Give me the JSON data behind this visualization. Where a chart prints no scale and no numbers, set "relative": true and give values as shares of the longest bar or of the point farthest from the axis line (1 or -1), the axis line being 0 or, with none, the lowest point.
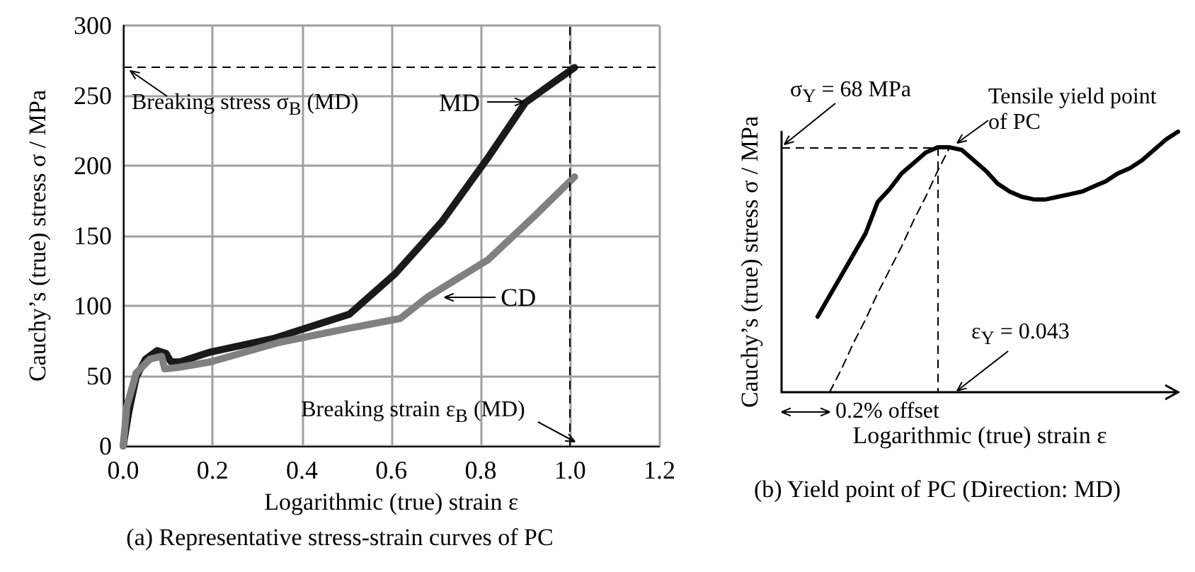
{
  "chart_data": [
    {
      "type": "line",
      "title": "(a) Representative stress-strain curves of PC",
      "xlabel": "Logarithmic (true) strain ε",
      "ylabel": "Cauchy’s (true) stress σ / MPa",
      "xlim": [
        0,
        1.2
      ],
      "xticks": [
        {
          "value": 0,
          "label": "0.0"
        },
        {
          "value": 0.2,
          "label": "0.2"
        },
        {
          "value": 0.4,
          "label": "0.4"
        },
        {
          "value": 0.6,
          "label": "0.6"
        },
        {
          "value": 0.8,
          "label": "0.8"
        },
        {
          "value": 1,
          "label": "1.0"
        },
        {
          "value": 1.2,
          "label": "1.2"
        }
      ],
      "ylim": [
        0,
        300
      ],
      "yticks": [
        0,
        50,
        100,
        150,
        200,
        250,
        300
      ],
      "grid": true,
      "marker": "none",
      "series": [
        {
          "name": "MD",
          "color": "#1a1a1a",
          "x": [
            0,
            0.013,
            0.029,
            0.05,
            0.076,
            0.096,
            0.107,
            0.127,
            0.195,
            0.34,
            0.506,
            0.609,
            0.713,
            0.817,
            0.9,
            1.01
          ],
          "values": [
            0,
            25,
            49,
            62,
            68,
            66,
            60,
            60,
            67,
            77,
            94,
            123,
            160,
            206,
            245,
            270
          ]
        },
        {
          "name": "CD",
          "color": "#808080",
          "x": [
            0,
            0.008,
            0.029,
            0.06,
            0.086,
            0.093,
            0.122,
            0.195,
            0.35,
            0.506,
            0.62,
            0.68,
            0.817,
            0.92,
            1.01
          ],
          "values": [
            0,
            28,
            52,
            62,
            64,
            55,
            56,
            60,
            74,
            84,
            91,
            106,
            133,
            164,
            192
          ]
        }
      ],
      "ref_lines": [
        {
          "axis": "y",
          "value": 270,
          "line_style": "dashed"
        },
        {
          "axis": "x",
          "value": 1.0,
          "line_style": "dashed"
        }
      ],
      "annotations": [
        {
          "text": "Breaking stress σ$_{B}$ (MD)",
          "x": 0,
          "y": 270
        },
        {
          "text": "Breaking strain ε$_{B}$ (MD)",
          "x": 1.0,
          "y": 0
        }
      ]
    },
    {
      "type": "line",
      "relative": true,
      "title": "(b) Yield point of PC (Direction: MD)",
      "xlabel": "Logarithmic (true) strain ε",
      "ylabel": "Cauchy’s (true) stress σ / MPa",
      "marker": "none",
      "categories": [
        null,
        null,
        null,
        null,
        null,
        null,
        null,
        null,
        null,
        null,
        null,
        null,
        null,
        null,
        null,
        null,
        null,
        null,
        null,
        null,
        null,
        null,
        null,
        null,
        null,
        null,
        null,
        null,
        null,
        null,
        null,
        null,
        null,
        null
      ],
      "series": [
        {
          "color": "#000000",
          "values": [
            null,
            null,
            null,
            0.29,
            0.37,
            0.45,
            0.53,
            0.61,
            0.73,
            0.78,
            0.84,
            0.88,
            0.92,
            0.94,
            0.94,
            0.93,
            0.89,
            0.85,
            0.8,
            0.77,
            0.75,
            0.74,
            0.74,
            0.75,
            0.76,
            0.77,
            0.79,
            0.81,
            0.84,
            0.86,
            0.89,
            0.93,
            0.97,
            1.0
          ]
        },
        {
          "color": "#000000",
          "line_style": "dashed",
          "values": [
            null,
            null,
            null,
            null,
            0,
            0.09,
            0.19,
            0.28,
            0.38,
            0.47,
            0.56,
            0.66,
            0.75,
            0.85,
            0.94,
            null,
            null,
            null,
            null,
            null,
            null,
            null,
            null,
            null,
            null,
            null,
            null,
            null,
            null,
            null,
            null,
            null,
            null,
            null
          ]
        }
      ],
      "ref_lines": [
        {
          "axis": "y",
          "value": 0.94,
          "line_style": "dashed"
        }
      ],
      "annotations": [
        "σ$_{Y}$ = 68 MPa",
        "Tensile yield point of PC",
        "ε$_{Y}$ = 0.043",
        "0.2% offset"
      ]
    }
  ]
}
